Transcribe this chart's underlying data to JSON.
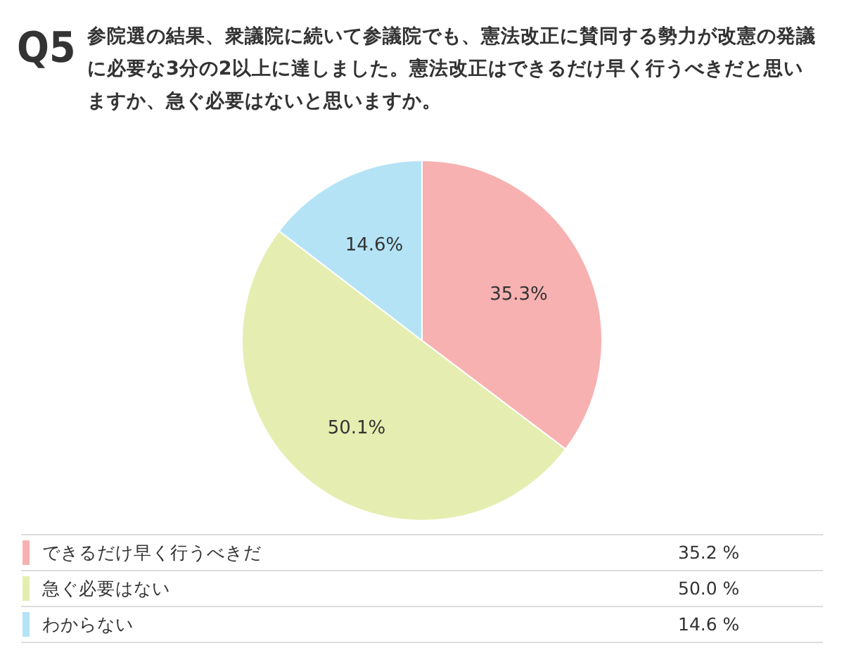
{
  "chart_data": {
    "type": "pie",
    "title": "Q5",
    "subtitle": "参院選の結果、衆議院に続いて参議院でも、憲法改正に賛同する勢力が改憲の発議に必要な3分の2以上に達しました。憲法改正はできるだけ早く行うべきだと思いますか、急ぐ必要はないと思いますか。",
    "categories": [
      "できるだけ早く行うべきだ",
      "急ぐ必要はない",
      "わからない"
    ],
    "values": [
      35.3,
      50.1,
      14.6
    ],
    "value_labels": [
      "35.3%",
      "50.1%",
      "14.6%"
    ],
    "colors": [
      "#f7b1b1",
      "#e5eeb0",
      "#b4e3f6"
    ],
    "legend": "bottom",
    "annotations": [
      "35.2 %",
      "50.0 %",
      "14.6 %"
    ]
  }
}
